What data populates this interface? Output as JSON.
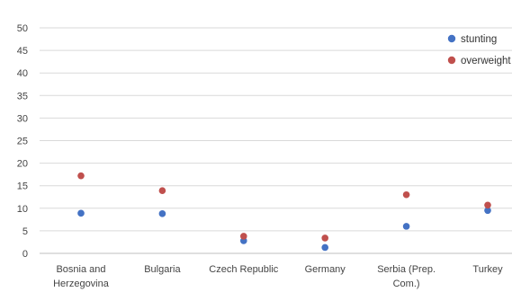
{
  "chart_data": {
    "type": "scatter",
    "categories": [
      [
        "Bosnia and",
        "Herzegovina"
      ],
      [
        "Bulgaria"
      ],
      [
        "Czech Republic"
      ],
      [
        "Germany"
      ],
      [
        "Serbia (Prep.",
        "Com.)"
      ],
      [
        "Turkey"
      ]
    ],
    "series": [
      {
        "name": "stunting",
        "color": "#4472C4",
        "values": [
          8.9,
          8.8,
          2.8,
          1.3,
          6.0,
          9.5
        ]
      },
      {
        "name": "overweight",
        "color": "#C0504D",
        "values": [
          17.2,
          13.9,
          3.8,
          3.4,
          13.0,
          10.7
        ]
      }
    ],
    "yticks": [
      0,
      5,
      10,
      15,
      20,
      25,
      30,
      35,
      40,
      45,
      50
    ],
    "ylim": [
      0,
      50
    ],
    "grid": true,
    "legend": "top-right"
  }
}
